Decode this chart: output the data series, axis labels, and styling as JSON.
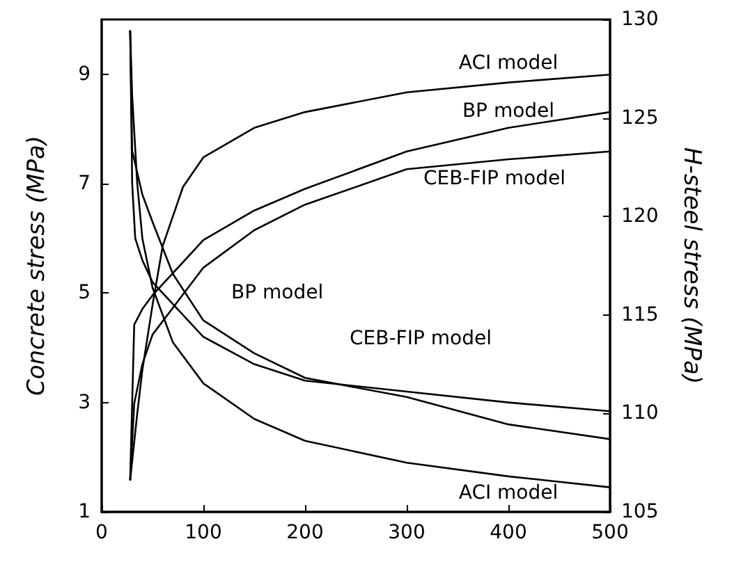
{
  "chart_data": {
    "type": "line",
    "ylabel": "Concrete stress (MPa)",
    "y2label": "H-steel stress (MPa)",
    "xlim": [
      0,
      500
    ],
    "xticks": [
      0,
      100,
      200,
      300,
      400,
      500
    ],
    "ylim": [
      1,
      10
    ],
    "yticks": [
      1,
      3,
      5,
      7,
      9
    ],
    "y2lim": [
      105,
      130
    ],
    "y2ticks": [
      105,
      110,
      115,
      120,
      125,
      130
    ],
    "grid": false,
    "legend": false,
    "marker": "none",
    "line_style": "solid",
    "series": [
      {
        "name": "ACI model",
        "color": "#000000",
        "x": [
          28,
          30,
          35,
          40,
          50,
          70,
          100,
          150,
          200,
          300,
          400,
          500
        ],
        "values": [
          9.8,
          8.6,
          7.0,
          6.0,
          5.1,
          4.1,
          3.35,
          2.7,
          2.3,
          1.9,
          1.65,
          1.45
        ]
      },
      {
        "name": "BP model",
        "color": "#000000",
        "x": [
          28,
          30,
          40,
          50,
          70,
          100,
          150,
          200,
          300,
          400,
          500
        ],
        "values": [
          9.8,
          7.6,
          6.8,
          6.3,
          5.35,
          4.5,
          3.9,
          3.45,
          3.1,
          2.6,
          2.33
        ]
      },
      {
        "name": "CEB-FIP model",
        "color": "#000000",
        "x": [
          28,
          30,
          33,
          40,
          50,
          100,
          150,
          200,
          300,
          400,
          500
        ],
        "values": [
          9.8,
          7.0,
          6.0,
          5.6,
          5.2,
          4.2,
          3.7,
          3.4,
          3.2,
          3.0,
          2.84
        ]
      },
      {
        "name": "ACI model",
        "color": "#000000",
        "axis": "y2",
        "x": [
          28,
          35,
          40,
          50,
          60,
          80,
          100,
          150,
          200,
          300,
          400,
          500
        ],
        "values": [
          106.6,
          110,
          112.2,
          115.5,
          118.5,
          121.5,
          123,
          124.5,
          125.3,
          126.3,
          126.8,
          127.2
        ]
      },
      {
        "name": "BP model",
        "color": "#000000",
        "axis": "y2",
        "x": [
          28,
          32,
          40,
          50,
          100,
          150,
          200,
          300,
          400,
          500
        ],
        "values": [
          106.6,
          114.5,
          115.3,
          116,
          118.8,
          120.3,
          121.4,
          123.3,
          124.5,
          125.3
        ]
      },
      {
        "name": "CEB-FIP model",
        "color": "#000000",
        "axis": "y2",
        "x": [
          28,
          32,
          40,
          50,
          100,
          150,
          200,
          300,
          400,
          500
        ],
        "values": [
          106.6,
          110.5,
          112.5,
          114,
          117.4,
          119.3,
          120.6,
          122.4,
          122.9,
          123.3
        ]
      }
    ]
  }
}
